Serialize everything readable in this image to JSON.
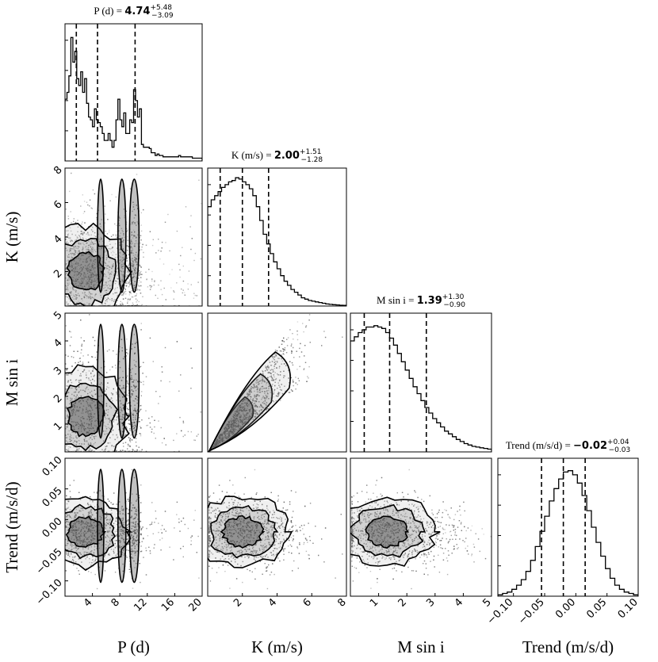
{
  "chart_data": {
    "type": "corner",
    "parameters": [
      {
        "id": "P",
        "label": "P (d)",
        "range": [
          0,
          20
        ],
        "ticks": [
          4,
          8,
          12,
          16,
          20
        ],
        "median": "4.74",
        "upper": "+5.48",
        "lower": "−3.09",
        "quantiles": [
          1.65,
          4.74,
          10.22
        ]
      },
      {
        "id": "K",
        "label": "K (m/s)",
        "range": [
          0,
          8
        ],
        "ticks": [
          2,
          4,
          6,
          8
        ],
        "median": "2.00",
        "upper": "+1.51",
        "lower": "−1.28",
        "quantiles": [
          0.72,
          2.0,
          3.51
        ]
      },
      {
        "id": "Msini",
        "label": "M sin i",
        "range": [
          0,
          5
        ],
        "ticks": [
          1,
          2,
          3,
          4,
          5
        ],
        "median": "1.39",
        "upper": "+1.30",
        "lower": "−0.90",
        "quantiles": [
          0.49,
          1.39,
          2.69
        ]
      },
      {
        "id": "Trend",
        "label": "Trend (m/s/d)",
        "range": [
          -0.125,
          0.1
        ],
        "ticks": [
          -0.1,
          -0.05,
          0.0,
          0.05,
          0.1
        ],
        "tick_labels": [
          "−0.10",
          "−0.05",
          "0.00",
          "0.05",
          "0.10"
        ],
        "median": "−0.02",
        "upper": "+0.04",
        "lower": "−0.03",
        "quantiles": [
          -0.055,
          -0.02,
          0.015
        ]
      }
    ],
    "row_ticks": {
      "K": {
        "values": [
          2,
          4,
          6,
          8
        ],
        "labels": [
          "2",
          "4",
          "6",
          "8"
        ]
      },
      "Msini": {
        "values": [
          1,
          2,
          3,
          4,
          5
        ],
        "labels": [
          "1",
          "2",
          "3",
          "4",
          "5"
        ]
      },
      "Trend": {
        "values": [
          -0.1,
          -0.05,
          0.0,
          0.05,
          0.1
        ],
        "labels": [
          "−0.10",
          "−0.05",
          "0.00",
          "0.05",
          "0.10"
        ]
      }
    },
    "histograms": {
      "P": [
        0.45,
        0.5,
        0.62,
        0.9,
        0.72,
        0.8,
        0.6,
        0.55,
        0.65,
        0.5,
        0.6,
        0.42,
        0.32,
        0.3,
        0.25,
        0.38,
        0.3,
        0.28,
        0.25,
        0.2,
        0.15,
        0.15,
        0.2,
        0.15,
        0.1,
        0.15,
        0.3,
        0.45,
        0.3,
        0.25,
        0.35,
        0.2,
        0.2,
        0.3,
        0.28,
        0.52,
        0.44,
        0.32,
        0.38,
        0.12,
        0.1,
        0.1,
        0.1,
        0.09,
        0.06,
        0.06,
        0.04,
        0.05,
        0.04,
        0.04,
        0.03,
        0.03,
        0.03,
        0.03,
        0.03,
        0.03,
        0.03,
        0.03,
        0.04,
        0.03,
        0.03,
        0.03,
        0.03,
        0.03,
        0.03,
        0.02,
        0.02,
        0.02,
        0.02,
        0.02
      ],
      "K": [
        0.72,
        0.77,
        0.8,
        0.83,
        0.86,
        0.88,
        0.9,
        0.91,
        0.93,
        0.92,
        0.9,
        0.88,
        0.85,
        0.8,
        0.72,
        0.62,
        0.52,
        0.45,
        0.38,
        0.32,
        0.27,
        0.22,
        0.18,
        0.15,
        0.12,
        0.1,
        0.08,
        0.06,
        0.05,
        0.04,
        0.035,
        0.03,
        0.025,
        0.02,
        0.015,
        0.012,
        0.01,
        0.008,
        0.006,
        0.005
      ],
      "Msini": [
        0.8,
        0.83,
        0.86,
        0.88,
        0.9,
        0.9,
        0.91,
        0.9,
        0.89,
        0.86,
        0.82,
        0.77,
        0.71,
        0.65,
        0.59,
        0.53,
        0.47,
        0.42,
        0.37,
        0.32,
        0.28,
        0.24,
        0.21,
        0.18,
        0.15,
        0.13,
        0.11,
        0.09,
        0.075,
        0.06,
        0.05,
        0.04,
        0.035,
        0.03,
        0.025,
        0.02
      ],
      "Trend": [
        0.01,
        0.02,
        0.03,
        0.05,
        0.08,
        0.12,
        0.18,
        0.26,
        0.36,
        0.47,
        0.58,
        0.69,
        0.78,
        0.85,
        0.9,
        0.91,
        0.88,
        0.82,
        0.73,
        0.62,
        0.5,
        0.39,
        0.29,
        0.2,
        0.13,
        0.08,
        0.05,
        0.03,
        0.02,
        0.01
      ]
    }
  }
}
